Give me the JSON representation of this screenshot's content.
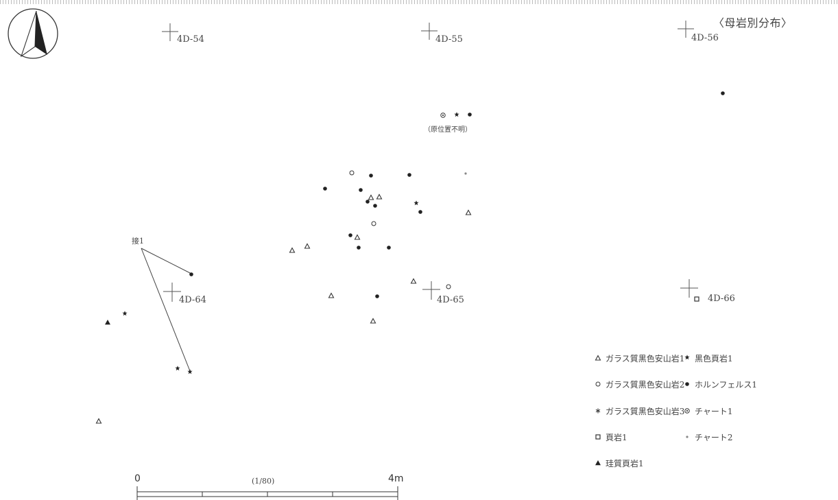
{
  "map": {
    "title": "〈母岩別分布〉",
    "unlocated_note": "（原位置不明）",
    "conjoin_label": "接1"
  },
  "grid_points": [
    {
      "label": "4D-54"
    },
    {
      "label": "4D-55"
    },
    {
      "label": "4D-56"
    },
    {
      "label": "4D-64"
    },
    {
      "label": "4D-65"
    },
    {
      "label": "4D-66"
    }
  ],
  "scale_bar": {
    "start": "0",
    "end": "4m",
    "ratio": "(1/80)"
  },
  "legend": {
    "items": [
      {
        "symbol": "open-triangle",
        "label": "ガラス質黒色安山岩1"
      },
      {
        "symbol": "small-star",
        "label": "黒色頁岩1"
      },
      {
        "symbol": "open-circle",
        "label": "ガラス質黒色安山岩2"
      },
      {
        "symbol": "filled-dot",
        "label": "ホルンフェルス1"
      },
      {
        "symbol": "asterisk",
        "label": "ガラス質黒色安山岩3"
      },
      {
        "symbol": "circle-with-dot",
        "label": "チャート1"
      },
      {
        "symbol": "open-square",
        "label": "頁岩1"
      },
      {
        "symbol": "tiny-dot",
        "label": "チャート2"
      },
      {
        "symbol": "filled-triangle",
        "label": "珪質頁岩1"
      }
    ]
  },
  "colors": {
    "ink": "#333333",
    "background": "#ffffff"
  }
}
